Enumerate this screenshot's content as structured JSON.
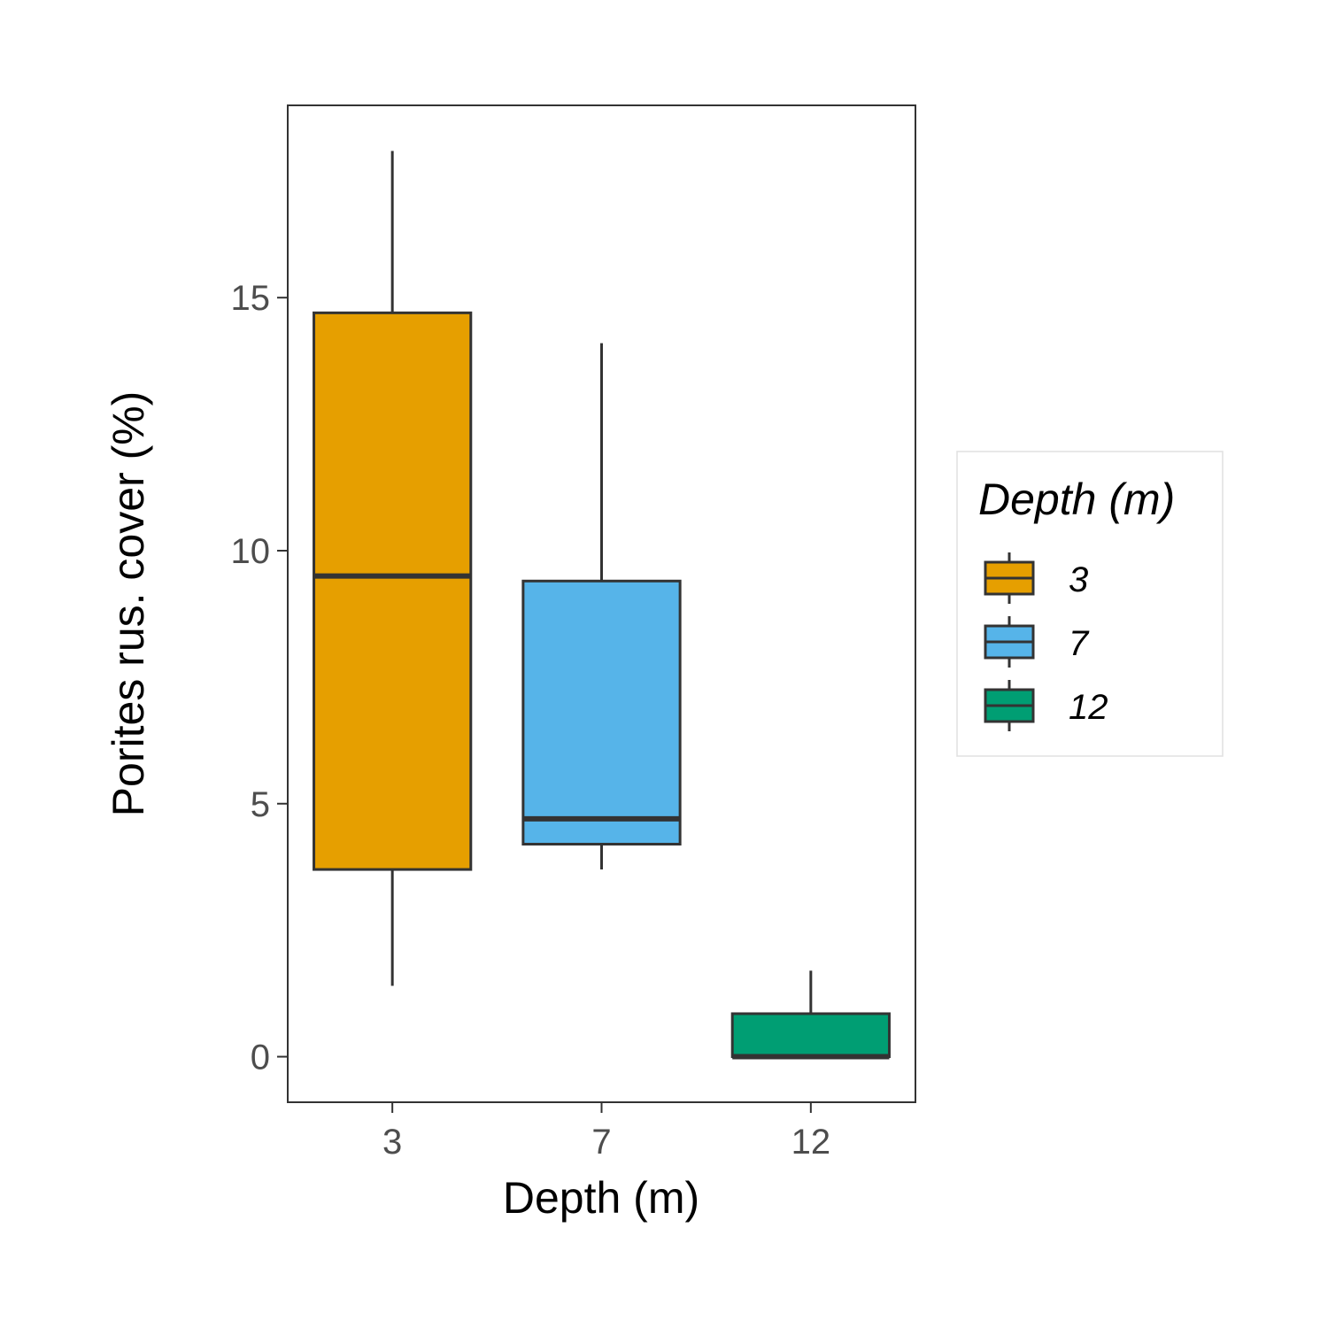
{
  "chart_data": {
    "type": "boxplot",
    "xlabel": "Depth (m)",
    "ylabel": "Porites rus. cover (%)",
    "categories": [
      "3",
      "7",
      "12"
    ],
    "ylim": [
      -0.9,
      18.8
    ],
    "yticks": [
      0,
      5,
      10,
      15
    ],
    "ytick_labels": [
      "0",
      "5",
      "10",
      "15"
    ],
    "boxes": [
      {
        "category": "3",
        "whisker_low": 1.4,
        "q1": 3.7,
        "median": 9.5,
        "q3": 14.7,
        "whisker_high": 17.9,
        "color": "#E69F00"
      },
      {
        "category": "7",
        "whisker_low": 3.7,
        "q1": 4.2,
        "median": 4.7,
        "q3": 9.4,
        "whisker_high": 14.1,
        "color": "#56B4E9"
      },
      {
        "category": "12",
        "whisker_low": 0.0,
        "q1": 0.0,
        "median": 0.0,
        "q3": 0.85,
        "whisker_high": 1.7,
        "color": "#009E73"
      }
    ],
    "legend": {
      "title": "Depth (m)",
      "placement": "right",
      "entries": [
        {
          "label": "3",
          "color": "#E69F00"
        },
        {
          "label": "7",
          "color": "#56B4E9"
        },
        {
          "label": "12",
          "color": "#009E73"
        }
      ]
    },
    "grid": false
  }
}
